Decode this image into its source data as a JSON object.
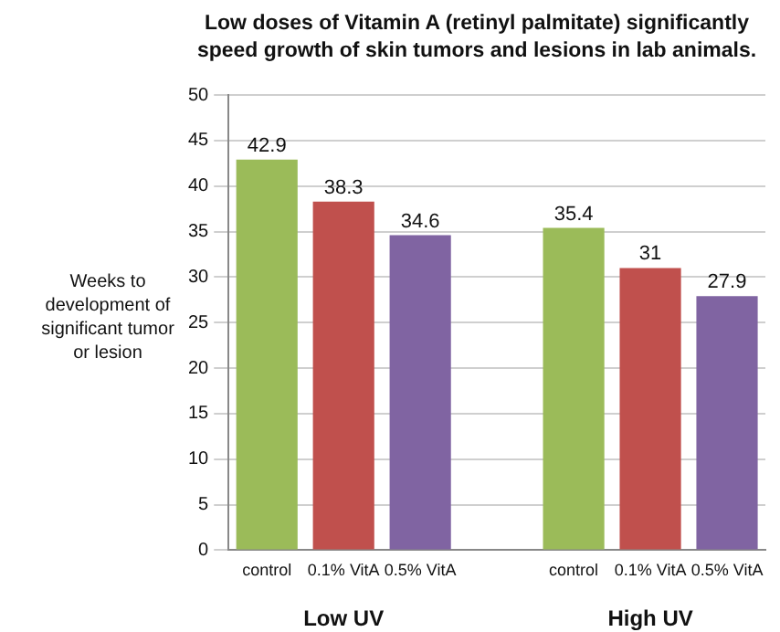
{
  "chart_data": {
    "type": "bar",
    "title": "Low doses of Vitamin A (retinyl palmitate) significantly speed growth of skin tumors and lesions in lab animals.",
    "ylabel": "Weeks to development of significant tumor or lesion",
    "categories": [
      "control",
      "0.1% VitA",
      "0.5% VitA",
      null,
      "control",
      "0.1% VitA",
      "0.5% VitA"
    ],
    "values": [
      42.9,
      38.3,
      34.6,
      null,
      35.4,
      31,
      27.9
    ],
    "colors": [
      "#9bbb59",
      "#c0504d",
      "#8064a2",
      null,
      "#9bbb59",
      "#c0504d",
      "#8064a2"
    ],
    "ylim": [
      0,
      50
    ],
    "yticks": [
      0,
      5,
      10,
      15,
      20,
      25,
      30,
      35,
      40,
      45,
      50
    ],
    "grid": "y",
    "data_labels": true,
    "legend": false,
    "annotations": [
      "Low UV",
      "High UV"
    ]
  }
}
